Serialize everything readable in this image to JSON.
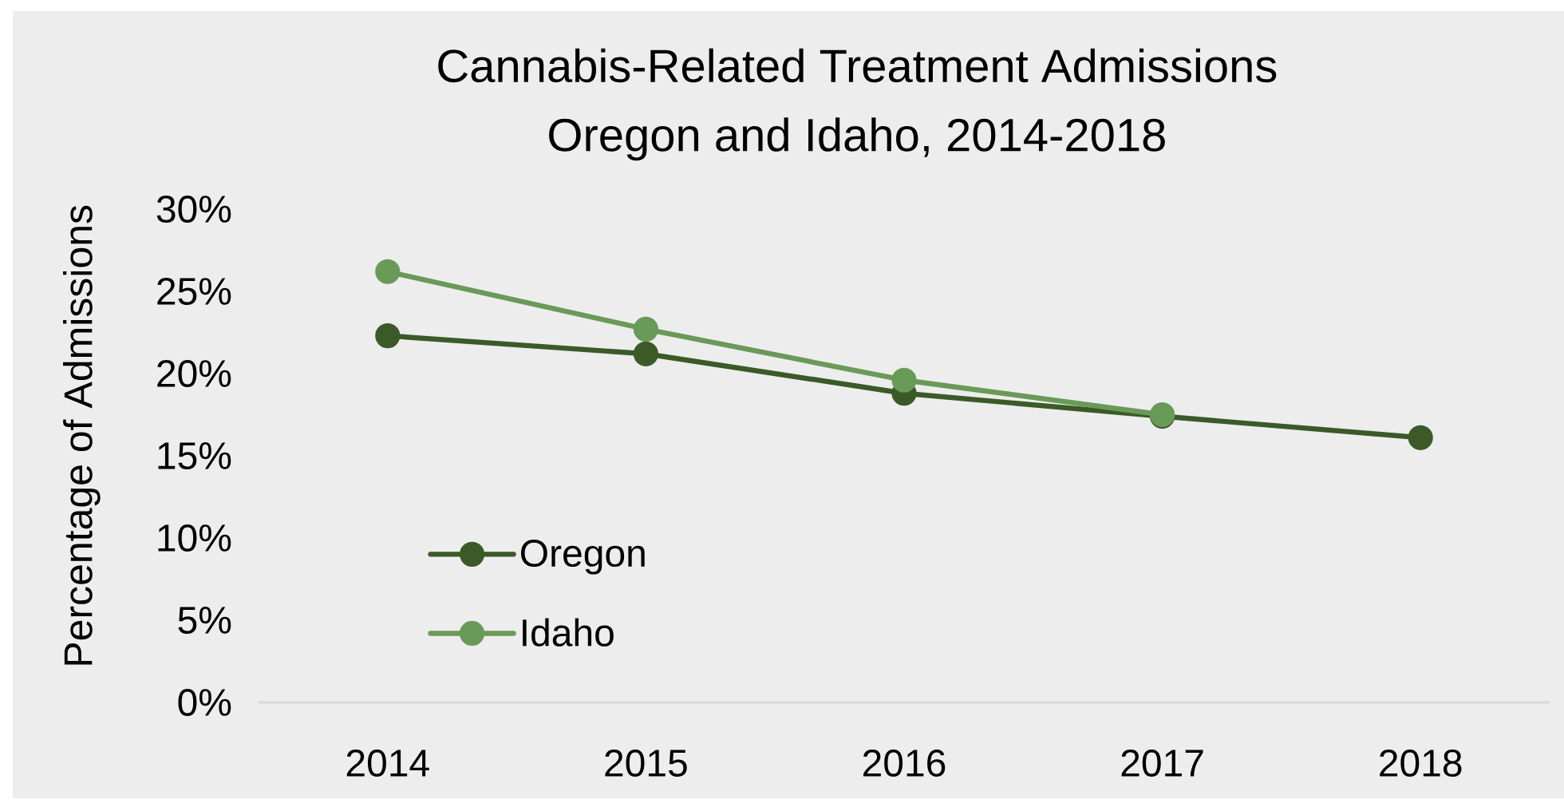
{
  "chart_data": {
    "type": "line",
    "title": "Cannabis-Related Treatment Admissions",
    "subtitle": "Oregon and Idaho, 2014-2018",
    "ylabel": "Percentage of Admissions",
    "categories": [
      "2014",
      "2015",
      "2016",
      "2017",
      "2018"
    ],
    "series": [
      {
        "name": "Oregon",
        "color": "#3b5a28",
        "values": [
          22.3,
          21.2,
          18.8,
          17.4,
          16.1
        ]
      },
      {
        "name": "Idaho",
        "color": "#6a9a58",
        "values": [
          26.2,
          22.7,
          19.6,
          17.5,
          null
        ]
      }
    ],
    "ylim": [
      0,
      30
    ],
    "yticks": [
      {
        "value": 0,
        "label": "0%"
      },
      {
        "value": 5,
        "label": "5%"
      },
      {
        "value": 10,
        "label": "10%"
      },
      {
        "value": 15,
        "label": "15%"
      },
      {
        "value": 20,
        "label": "20%"
      },
      {
        "value": 25,
        "label": "25%"
      },
      {
        "value": 30,
        "label": "30%"
      }
    ],
    "legend": "bottom left",
    "marker": "circle",
    "line_style": "solid"
  }
}
